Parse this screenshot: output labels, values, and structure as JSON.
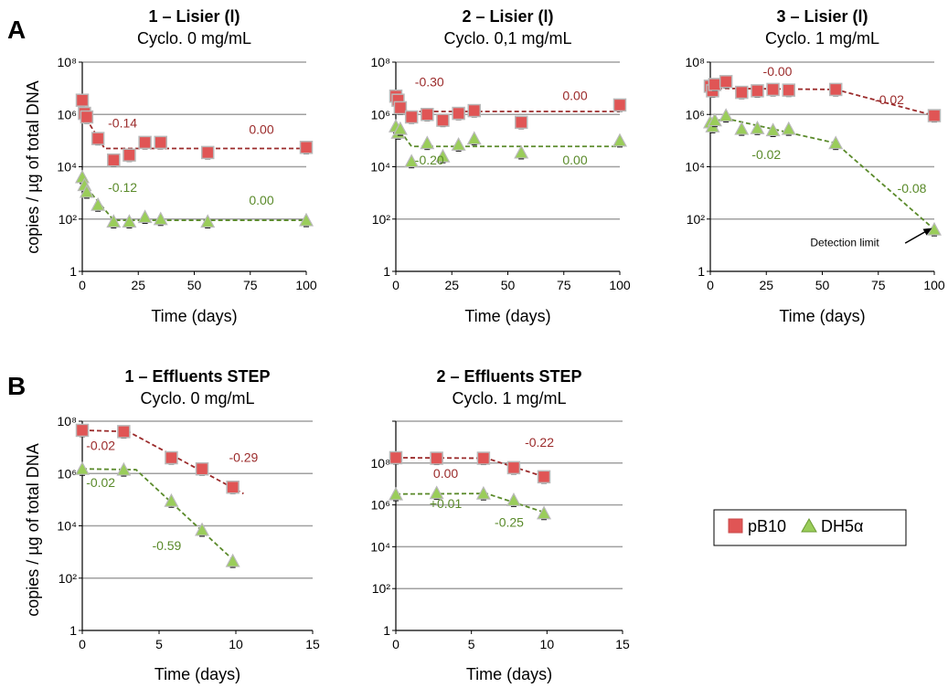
{
  "figure": {
    "panel_labels": [
      "A",
      "B"
    ],
    "ylabel": "copies / µg of total DNA",
    "xlabel": "Time (days)"
  },
  "legend": {
    "items": [
      {
        "label": "pB10",
        "color": "#e05555",
        "marker": "square"
      },
      {
        "label": "DH5α",
        "color": "#9acd5a",
        "marker": "triangle"
      }
    ]
  },
  "colors": {
    "pB10": "#e05555",
    "DH5a": "#9acd5a",
    "pB10_line": "#9b2b2b",
    "DH5a_line": "#5a8a2a",
    "grid": "#a0a0a0"
  },
  "chart_data": [
    {
      "type": "scatter",
      "title": "1 – Lisier (l)",
      "subtitle": "Cyclo. 0 mg/mL",
      "xlabel": "Time (days)",
      "ylabel": "copies / µg of total DNA",
      "xlim": [
        0,
        100
      ],
      "ylim": [
        1,
        100000000
      ],
      "yscale": "log",
      "x_ticks": [
        "0",
        "25",
        "50",
        "75",
        "100"
      ],
      "y_ticks": [
        "1",
        "10²",
        "10⁴",
        "10⁶",
        "10⁸"
      ],
      "series": [
        {
          "name": "pB10",
          "x": [
            0,
            1,
            2,
            7,
            14,
            21,
            28,
            35,
            56,
            100
          ],
          "y": [
            3500000,
            1100000,
            800000,
            120000,
            18000,
            28000,
            85000,
            85000,
            35000,
            55000
          ]
        },
        {
          "name": "DH5α",
          "x": [
            0,
            1,
            2,
            7,
            14,
            21,
            28,
            35,
            56,
            100
          ],
          "y": [
            4000,
            2000,
            1100,
            350,
            80,
            80,
            120,
            100,
            80,
            90
          ]
        }
      ],
      "fits": [
        {
          "series": "pB10",
          "x": [
            0,
            10,
            100
          ],
          "y": [
            1200000,
            50000,
            50000
          ]
        },
        {
          "series": "DH5α",
          "x": [
            0,
            14,
            100
          ],
          "y": [
            2500,
            90,
            90
          ]
        }
      ],
      "annotations": [
        {
          "text": "-0.14",
          "x": 18,
          "y": 320000,
          "series": "pB10"
        },
        {
          "text": "0.00",
          "x": 80,
          "y": 180000,
          "series": "pB10"
        },
        {
          "text": "-0.12",
          "x": 18,
          "y": 1100,
          "series": "DH5α"
        },
        {
          "text": "0.00",
          "x": 80,
          "y": 350,
          "series": "DH5α"
        }
      ]
    },
    {
      "type": "scatter",
      "title": "2 – Lisier (l)",
      "subtitle": "Cyclo. 0,1 mg/mL",
      "xlabel": "Time (days)",
      "xlim": [
        0,
        100
      ],
      "ylim": [
        1,
        100000000
      ],
      "yscale": "log",
      "x_ticks": [
        "0",
        "25",
        "50",
        "75",
        "100"
      ],
      "y_ticks": [
        "1",
        "10²",
        "10⁴",
        "10⁶",
        "10⁸"
      ],
      "series": [
        {
          "name": "pB10",
          "x": [
            0,
            1,
            2,
            7,
            14,
            21,
            28,
            35,
            56,
            100
          ],
          "y": [
            5000000,
            3500000,
            1800000,
            800000,
            1000000,
            600000,
            1100000,
            1400000,
            500000,
            2300000
          ]
        },
        {
          "name": "DH5α",
          "x": [
            0,
            1,
            2,
            7,
            14,
            21,
            28,
            35,
            56,
            100
          ],
          "y": [
            350000,
            200000,
            280000,
            16000,
            80000,
            25000,
            70000,
            120000,
            35000,
            100000
          ]
        }
      ],
      "fits": [
        {
          "series": "pB10",
          "x": [
            0,
            5,
            100
          ],
          "y": [
            4000000,
            1300000,
            1300000
          ]
        },
        {
          "series": "DH5α",
          "x": [
            0,
            7,
            100
          ],
          "y": [
            400000,
            60000,
            60000
          ]
        }
      ],
      "annotations": [
        {
          "text": "-0.30",
          "x": 15,
          "y": 12000000,
          "series": "pB10"
        },
        {
          "text": "0.00",
          "x": 80,
          "y": 3500000,
          "series": "pB10"
        },
        {
          "text": "-0.20",
          "x": 15,
          "y": 12000,
          "series": "DH5α"
        },
        {
          "text": "0.00",
          "x": 80,
          "y": 12000,
          "series": "DH5α"
        }
      ]
    },
    {
      "type": "scatter",
      "title": "3 – Lisier (l)",
      "subtitle": "Cyclo. 1 mg/mL",
      "xlabel": "Time (days)",
      "xlim": [
        0,
        100
      ],
      "ylim": [
        1,
        100000000
      ],
      "yscale": "log",
      "x_ticks": [
        "0",
        "25",
        "50",
        "75",
        "100"
      ],
      "y_ticks": [
        "1",
        "10²",
        "10⁴",
        "10⁶",
        "10⁸"
      ],
      "series": [
        {
          "name": "pB10",
          "x": [
            0,
            1,
            2,
            7,
            14,
            21,
            28,
            35,
            56,
            100
          ],
          "y": [
            12000000,
            8000000,
            14000000,
            18000000,
            7000000,
            8000000,
            9000000,
            8500000,
            9000000,
            900000
          ]
        },
        {
          "name": "DH5α",
          "x": [
            0,
            1,
            2,
            7,
            14,
            21,
            28,
            35,
            56,
            100
          ],
          "y": [
            500000,
            350000,
            600000,
            900000,
            280000,
            300000,
            250000,
            280000,
            80000,
            40
          ]
        }
      ],
      "fits": [
        {
          "series": "pB10",
          "x": [
            0,
            56,
            100
          ],
          "y": [
            10000000,
            9000000,
            900000
          ]
        },
        {
          "series": "DH5α",
          "x": [
            0,
            7,
            56,
            100
          ],
          "y": [
            500000,
            700000,
            80000,
            40
          ]
        }
      ],
      "annotations": [
        {
          "text": "-0.00",
          "x": 30,
          "y": 30000000,
          "series": "pB10"
        },
        {
          "text": "-0.02",
          "x": 80,
          "y": 2500000,
          "series": "pB10"
        },
        {
          "text": "-0.02",
          "x": 25,
          "y": 20000,
          "series": "DH5α"
        },
        {
          "text": "-0.08",
          "x": 90,
          "y": 1000,
          "series": "DH5α"
        },
        {
          "text": "Detection limit",
          "x": 60,
          "y": 9,
          "series": "none"
        }
      ]
    },
    {
      "type": "scatter",
      "title": "1 – Effluents STEP",
      "subtitle": "Cyclo. 0 mg/mL",
      "xlabel": "Time (days)",
      "ylabel": "copies / µg of total DNA",
      "xlim": [
        0,
        15
      ],
      "ylim": [
        1,
        100000000
      ],
      "yscale": "log",
      "x_ticks": [
        "0",
        "5",
        "10",
        "15"
      ],
      "y_ticks": [
        "1",
        "10²",
        "10⁴",
        "10⁶",
        "10⁸"
      ],
      "series": [
        {
          "name": "pB10",
          "x": [
            0,
            2.7,
            5.8,
            7.8,
            9.8
          ],
          "y": [
            45000000,
            40000000,
            4000000,
            1500000,
            300000
          ]
        },
        {
          "name": "DH5α",
          "x": [
            0,
            2.7,
            5.8,
            7.8,
            9.8
          ],
          "y": [
            1500000,
            1400000,
            90000,
            7000,
            450
          ]
        }
      ],
      "fits": [
        {
          "series": "pB10",
          "x": [
            0,
            3,
            10.5
          ],
          "y": [
            45000000,
            40000000,
            170000
          ]
        },
        {
          "series": "DH5α",
          "x": [
            0,
            3.5,
            10
          ],
          "y": [
            1500000,
            1400000,
            400
          ]
        }
      ],
      "annotations": [
        {
          "text": "-0.02",
          "x": 1.2,
          "y": 8000000,
          "series": "pB10"
        },
        {
          "text": "-0.29",
          "x": 10.5,
          "y": 2800000,
          "series": "pB10"
        },
        {
          "text": "-0.02",
          "x": 1.2,
          "y": 300000,
          "series": "DH5α"
        },
        {
          "text": "-0.59",
          "x": 5.5,
          "y": 1200,
          "series": "DH5α"
        }
      ]
    },
    {
      "type": "scatter",
      "title": "2 – Effluents STEP",
      "subtitle": "Cyclo. 1 mg/mL",
      "xlabel": "Time (days)",
      "xlim": [
        0,
        15
      ],
      "ylim": [
        1,
        10000000000
      ],
      "yscale": "log",
      "x_ticks": [
        "0",
        "5",
        "10",
        "15"
      ],
      "y_ticks": [
        "1",
        "10²",
        "10⁴",
        "10⁶",
        "10⁸"
      ],
      "series": [
        {
          "name": "pB10",
          "x": [
            0,
            2.7,
            5.8,
            7.8,
            9.8
          ],
          "y": [
            180000000,
            170000000,
            170000000,
            60000000,
            22000000
          ]
        },
        {
          "name": "DH5α",
          "x": [
            0,
            2.7,
            5.8,
            7.8,
            9.8
          ],
          "y": [
            3200000,
            3700000,
            3500000,
            1700000,
            400000
          ]
        }
      ],
      "fits": [
        {
          "series": "pB10",
          "x": [
            0,
            6,
            10
          ],
          "y": [
            180000000,
            170000000,
            20000000
          ]
        },
        {
          "series": "DH5α",
          "x": [
            0,
            6,
            10
          ],
          "y": [
            3300000,
            3500000,
            400000
          ]
        }
      ],
      "annotations": [
        {
          "text": "0.00",
          "x": 3.3,
          "y": 20000000,
          "series": "pB10"
        },
        {
          "text": "-0.22",
          "x": 9.5,
          "y": 600000000,
          "series": "pB10"
        },
        {
          "text": "+0.01",
          "x": 3.3,
          "y": 700000,
          "series": "DH5α"
        },
        {
          "text": "-0.25",
          "x": 7.5,
          "y": 90000,
          "series": "DH5α"
        }
      ]
    }
  ]
}
